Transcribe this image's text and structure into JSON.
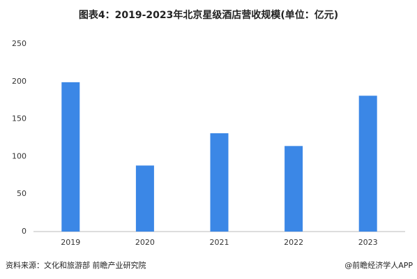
{
  "chart_data": {
    "type": "bar",
    "title": "图表4：2019-2023年北京星级酒店营收规模(单位：亿元)",
    "categories": [
      "2019",
      "2020",
      "2021",
      "2022",
      "2023"
    ],
    "values": [
      199,
      88,
      131,
      114,
      181
    ],
    "color": "#3b87e6",
    "ylim": [
      0,
      250
    ],
    "yticks": [
      0,
      50,
      100,
      150,
      200,
      250
    ],
    "grid": false,
    "source": "资料来源：文化和旅游部 前瞻产业研究院",
    "credit": "@前瞻经济学人APP"
  }
}
